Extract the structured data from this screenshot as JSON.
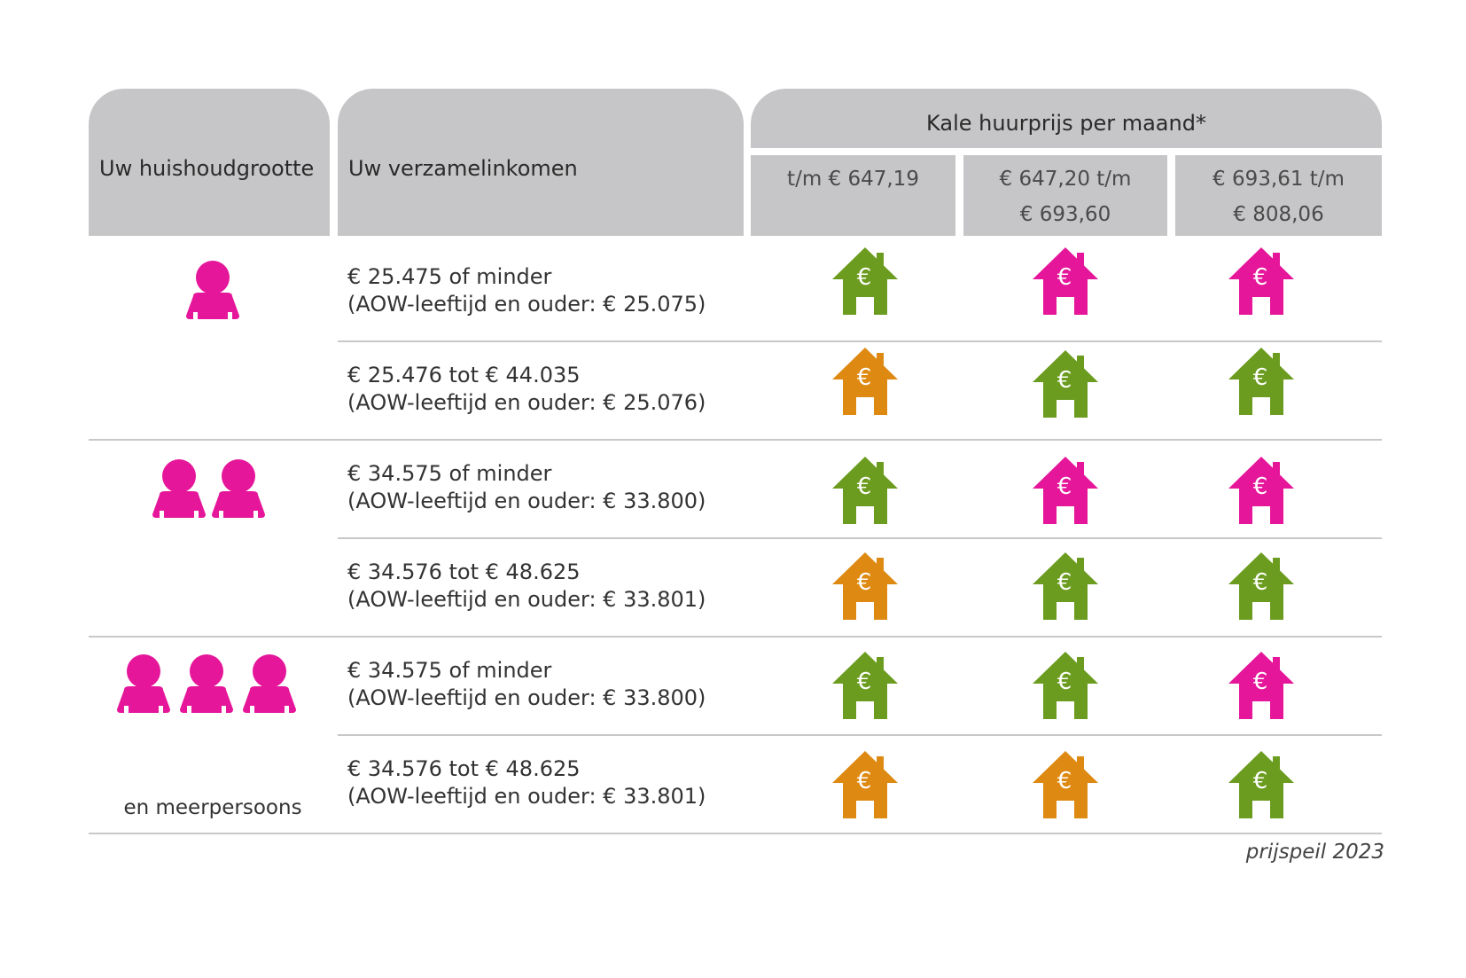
{
  "header": {
    "household_label": "Uw huishoudgrootte",
    "income_label": "Uw verzamelinkomen",
    "rent_label": "Kale huurprijs per maand*",
    "price_cols": [
      {
        "line1": "t/m € 647,19",
        "line2": ""
      },
      {
        "line1": "€ 647,20  t/m",
        "line2": "€ 693,60"
      },
      {
        "line1": "€ 693,61  t/m",
        "line2": "€ 808,06"
      }
    ]
  },
  "rows": [
    {
      "line1": "€ 25.475 of minder",
      "line2": "(AOW-leeftijd en ouder: € 25.075)",
      "houses": [
        "green",
        "pink",
        "pink"
      ]
    },
    {
      "line1": "€ 25.476 tot € 44.035",
      "line2": "(AOW-leeftijd en ouder: € 25.076)",
      "houses": [
        "orange",
        "green",
        "green"
      ]
    },
    {
      "line1": "€ 34.575 of minder",
      "line2": "(AOW-leeftijd en ouder: € 33.800)",
      "houses": [
        "green",
        "pink",
        "pink"
      ]
    },
    {
      "line1": "€ 34.576  tot € 48.625",
      "line2": "(AOW-leeftijd en ouder: € 33.801)",
      "houses": [
        "orange",
        "green",
        "green"
      ]
    },
    {
      "line1": "€ 34.575 of minder",
      "line2": "(AOW-leeftijd en ouder: € 33.800)",
      "houses": [
        "green",
        "green",
        "pink"
      ]
    },
    {
      "line1": "€ 34.576 tot € 48.625",
      "line2": "(AOW-leeftijd en ouder: € 33.801)",
      "houses": [
        "orange",
        "orange",
        "green"
      ]
    }
  ],
  "groups": [
    {
      "persons": 1,
      "label": ""
    },
    {
      "persons": 2,
      "label": ""
    },
    {
      "persons": 3,
      "label": "en meerpersoons"
    }
  ],
  "house_symbol": "€",
  "footnote": "prijspeil 2023",
  "colors": {
    "header_bg": "#c6c6c8",
    "person": "#e5169a",
    "green": "#6b9c1f",
    "pink": "#e5169a",
    "orange": "#de8a12",
    "divider": "#c8c8c8"
  },
  "icons": {
    "person": "person-icon",
    "house": "house-euro-icon"
  }
}
